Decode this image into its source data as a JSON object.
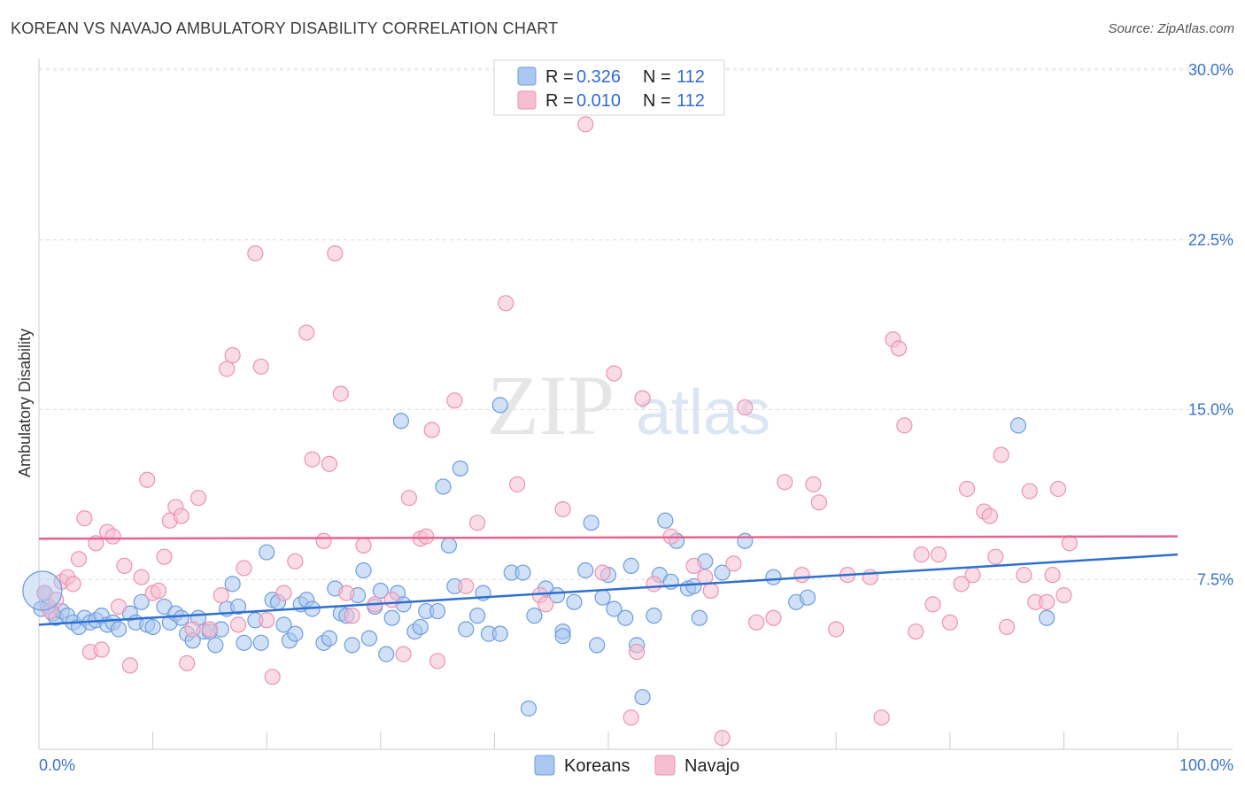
{
  "title": "KOREAN VS NAVAJO AMBULATORY DISABILITY CORRELATION CHART",
  "source": "Source: ZipAtlas.com",
  "colors": {
    "koreans_fill": "#a9c7ef",
    "koreans_stroke": "#6f9ddd",
    "koreans_line": "#2e6fd0",
    "navajo_fill": "#f6bfd1",
    "navajo_stroke": "#ec93b2",
    "navajo_line": "#e8628d",
    "axis_text": "#3b73c9",
    "grid": "#dddddd"
  },
  "legend": {
    "rows": [
      {
        "r_label": "R =",
        "r_value": "0.326",
        "n_label": "N =",
        "n_value": "112"
      },
      {
        "r_label": "R =",
        "r_value": "0.010",
        "n_label": "N =",
        "n_value": "112"
      }
    ]
  },
  "bottom_legend": [
    "Koreans",
    "Navajo"
  ],
  "watermark": {
    "zip": "ZIP",
    "atlas": "atlas"
  },
  "chart_data": {
    "type": "scatter",
    "title": "KOREAN VS NAVAJO AMBULATORY DISABILITY CORRELATION CHART",
    "xlabel": "",
    "ylabel": "Ambulatory Disability",
    "xlim": [
      0,
      100
    ],
    "ylim": [
      0,
      30
    ],
    "x_tick_labels": [
      "0.0%",
      "100.0%"
    ],
    "y_ticks": [
      7.5,
      15.0,
      22.5,
      30.0
    ],
    "y_tick_labels": [
      "7.5%",
      "15.0%",
      "22.5%",
      "30.0%"
    ],
    "grid": true,
    "legend_position": "top-center",
    "series": [
      {
        "name": "Koreans",
        "r": 0.326,
        "n": 112,
        "trend": {
          "x": [
            0,
            100
          ],
          "y": [
            5.5,
            8.6
          ]
        },
        "points": [
          [
            0.5,
            6.9
          ],
          [
            0.8,
            6.3
          ],
          [
            1.2,
            6.0
          ],
          [
            1.5,
            5.8
          ],
          [
            2.0,
            6.1
          ],
          [
            2.5,
            5.9
          ],
          [
            3.0,
            5.6
          ],
          [
            3.5,
            5.4
          ],
          [
            4.0,
            5.8
          ],
          [
            4.5,
            5.6
          ],
          [
            5.0,
            5.7
          ],
          [
            5.5,
            5.9
          ],
          [
            6.0,
            5.5
          ],
          [
            6.5,
            5.6
          ],
          [
            7.0,
            5.3
          ],
          [
            8.0,
            6.0
          ],
          [
            8.5,
            5.6
          ],
          [
            9.0,
            6.5
          ],
          [
            9.5,
            5.5
          ],
          [
            10.0,
            5.4
          ],
          [
            11.0,
            6.3
          ],
          [
            11.5,
            5.6
          ],
          [
            12.0,
            6.0
          ],
          [
            12.5,
            5.8
          ],
          [
            13.0,
            5.1
          ],
          [
            13.5,
            4.8
          ],
          [
            14.0,
            5.8
          ],
          [
            14.5,
            5.2
          ],
          [
            15.0,
            5.2
          ],
          [
            15.5,
            4.6
          ],
          [
            16.0,
            5.3
          ],
          [
            16.5,
            6.2
          ],
          [
            17.0,
            7.3
          ],
          [
            17.5,
            6.3
          ],
          [
            18.0,
            4.7
          ],
          [
            19.0,
            5.7
          ],
          [
            19.5,
            4.7
          ],
          [
            20.0,
            8.7
          ],
          [
            20.5,
            6.6
          ],
          [
            21.0,
            6.5
          ],
          [
            21.5,
            5.5
          ],
          [
            22.0,
            4.8
          ],
          [
            22.5,
            5.1
          ],
          [
            23.0,
            6.4
          ],
          [
            23.5,
            6.6
          ],
          [
            24.0,
            6.2
          ],
          [
            25.0,
            4.7
          ],
          [
            25.5,
            4.9
          ],
          [
            26.0,
            7.1
          ],
          [
            26.5,
            6.0
          ],
          [
            27.0,
            5.9
          ],
          [
            27.5,
            4.6
          ],
          [
            28.0,
            6.8
          ],
          [
            28.5,
            7.9
          ],
          [
            29.0,
            4.9
          ],
          [
            29.5,
            6.3
          ],
          [
            30.0,
            7.0
          ],
          [
            30.5,
            4.2
          ],
          [
            31.0,
            5.8
          ],
          [
            31.5,
            6.9
          ],
          [
            32.0,
            6.4
          ],
          [
            31.8,
            14.5
          ],
          [
            33.0,
            5.2
          ],
          [
            33.5,
            5.4
          ],
          [
            34.0,
            6.1
          ],
          [
            35.0,
            6.1
          ],
          [
            35.5,
            11.6
          ],
          [
            36.0,
            9.0
          ],
          [
            36.5,
            7.2
          ],
          [
            37.0,
            12.4
          ],
          [
            37.5,
            5.3
          ],
          [
            38.5,
            5.9
          ],
          [
            39.0,
            6.9
          ],
          [
            39.5,
            5.1
          ],
          [
            40.5,
            5.1
          ],
          [
            40.5,
            15.2
          ],
          [
            41.5,
            7.8
          ],
          [
            42.5,
            7.8
          ],
          [
            43.0,
            1.8
          ],
          [
            43.5,
            5.9
          ],
          [
            44.5,
            7.1
          ],
          [
            45.5,
            6.8
          ],
          [
            46.0,
            5.2
          ],
          [
            46.0,
            5.0
          ],
          [
            47.0,
            6.5
          ],
          [
            48.0,
            7.9
          ],
          [
            48.5,
            10.0
          ],
          [
            49.0,
            4.6
          ],
          [
            49.5,
            6.7
          ],
          [
            50.0,
            7.7
          ],
          [
            50.5,
            6.2
          ],
          [
            51.5,
            5.8
          ],
          [
            52.0,
            8.1
          ],
          [
            52.5,
            4.6
          ],
          [
            53.0,
            2.3
          ],
          [
            54.0,
            5.9
          ],
          [
            54.5,
            7.7
          ],
          [
            55.0,
            10.1
          ],
          [
            55.5,
            7.4
          ],
          [
            56.0,
            9.2
          ],
          [
            57.0,
            7.1
          ],
          [
            57.5,
            7.2
          ],
          [
            58.0,
            5.8
          ],
          [
            58.5,
            8.3
          ],
          [
            60.0,
            7.8
          ],
          [
            62.0,
            9.2
          ],
          [
            64.5,
            7.6
          ],
          [
            66.5,
            6.5
          ],
          [
            67.5,
            6.7
          ],
          [
            86.0,
            14.3
          ],
          [
            88.5,
            5.8
          ],
          [
            0.2,
            6.2
          ]
        ]
      },
      {
        "name": "Navajo",
        "r": 0.01,
        "n": 112,
        "trend": {
          "x": [
            0,
            100
          ],
          "y": [
            9.3,
            9.4
          ]
        },
        "points": [
          [
            0.5,
            6.9
          ],
          [
            1.0,
            6.1
          ],
          [
            1.5,
            6.6
          ],
          [
            2.0,
            7.4
          ],
          [
            2.5,
            7.6
          ],
          [
            3.0,
            7.3
          ],
          [
            3.5,
            8.4
          ],
          [
            4.0,
            10.2
          ],
          [
            4.5,
            4.3
          ],
          [
            5.0,
            9.1
          ],
          [
            5.5,
            4.4
          ],
          [
            6.0,
            9.6
          ],
          [
            6.5,
            9.4
          ],
          [
            7.0,
            6.3
          ],
          [
            7.5,
            8.1
          ],
          [
            8.0,
            3.7
          ],
          [
            9.0,
            7.6
          ],
          [
            9.5,
            11.9
          ],
          [
            10.0,
            6.9
          ],
          [
            10.5,
            7.0
          ],
          [
            11.0,
            8.5
          ],
          [
            11.5,
            10.1
          ],
          [
            12.0,
            10.7
          ],
          [
            12.5,
            10.3
          ],
          [
            13.0,
            3.8
          ],
          [
            13.5,
            5.3
          ],
          [
            14.0,
            11.1
          ],
          [
            15.0,
            5.3
          ],
          [
            16.0,
            6.8
          ],
          [
            16.5,
            16.8
          ],
          [
            17.0,
            17.4
          ],
          [
            17.5,
            5.5
          ],
          [
            18.0,
            8.0
          ],
          [
            19.0,
            21.9
          ],
          [
            19.5,
            16.9
          ],
          [
            20.0,
            5.7
          ],
          [
            20.5,
            3.2
          ],
          [
            21.5,
            6.9
          ],
          [
            22.5,
            8.3
          ],
          [
            23.5,
            18.4
          ],
          [
            24.0,
            12.8
          ],
          [
            25.0,
            9.2
          ],
          [
            25.5,
            12.6
          ],
          [
            26.0,
            21.9
          ],
          [
            26.5,
            15.7
          ],
          [
            27.0,
            6.9
          ],
          [
            27.5,
            5.9
          ],
          [
            28.5,
            9.0
          ],
          [
            29.5,
            6.4
          ],
          [
            31.0,
            6.6
          ],
          [
            32.0,
            4.2
          ],
          [
            32.5,
            11.1
          ],
          [
            33.5,
            9.3
          ],
          [
            34.0,
            9.4
          ],
          [
            34.5,
            14.1
          ],
          [
            35.0,
            3.9
          ],
          [
            36.5,
            15.4
          ],
          [
            37.5,
            7.2
          ],
          [
            38.5,
            10.0
          ],
          [
            41.0,
            19.7
          ],
          [
            42.0,
            11.7
          ],
          [
            44.0,
            6.8
          ],
          [
            44.5,
            6.4
          ],
          [
            46.0,
            10.6
          ],
          [
            48.0,
            27.6
          ],
          [
            49.5,
            7.8
          ],
          [
            50.5,
            16.6
          ],
          [
            52.0,
            1.4
          ],
          [
            52.5,
            4.3
          ],
          [
            53.0,
            15.5
          ],
          [
            54.0,
            7.3
          ],
          [
            55.5,
            9.4
          ],
          [
            57.5,
            8.1
          ],
          [
            58.5,
            7.6
          ],
          [
            59.0,
            7.0
          ],
          [
            60.0,
            0.5
          ],
          [
            61.0,
            8.2
          ],
          [
            62.0,
            15.1
          ],
          [
            63.0,
            5.6
          ],
          [
            64.5,
            5.8
          ],
          [
            65.5,
            11.8
          ],
          [
            67.0,
            7.7
          ],
          [
            68.0,
            11.7
          ],
          [
            68.5,
            10.9
          ],
          [
            70.0,
            5.3
          ],
          [
            71.0,
            7.7
          ],
          [
            73.0,
            7.6
          ],
          [
            74.0,
            1.4
          ],
          [
            75.0,
            18.1
          ],
          [
            75.5,
            17.7
          ],
          [
            76.0,
            14.3
          ],
          [
            77.0,
            5.2
          ],
          [
            77.5,
            8.6
          ],
          [
            78.5,
            6.4
          ],
          [
            79.0,
            8.6
          ],
          [
            80.0,
            5.6
          ],
          [
            81.0,
            7.3
          ],
          [
            81.5,
            11.5
          ],
          [
            82.0,
            7.7
          ],
          [
            83.0,
            10.5
          ],
          [
            83.5,
            10.3
          ],
          [
            84.0,
            8.5
          ],
          [
            84.5,
            13.0
          ],
          [
            85.0,
            5.4
          ],
          [
            86.5,
            7.7
          ],
          [
            87.0,
            11.4
          ],
          [
            87.5,
            6.5
          ],
          [
            88.5,
            6.5
          ],
          [
            89.0,
            7.7
          ],
          [
            89.5,
            11.5
          ],
          [
            90.0,
            6.8
          ],
          [
            90.5,
            9.1
          ]
        ]
      }
    ]
  }
}
